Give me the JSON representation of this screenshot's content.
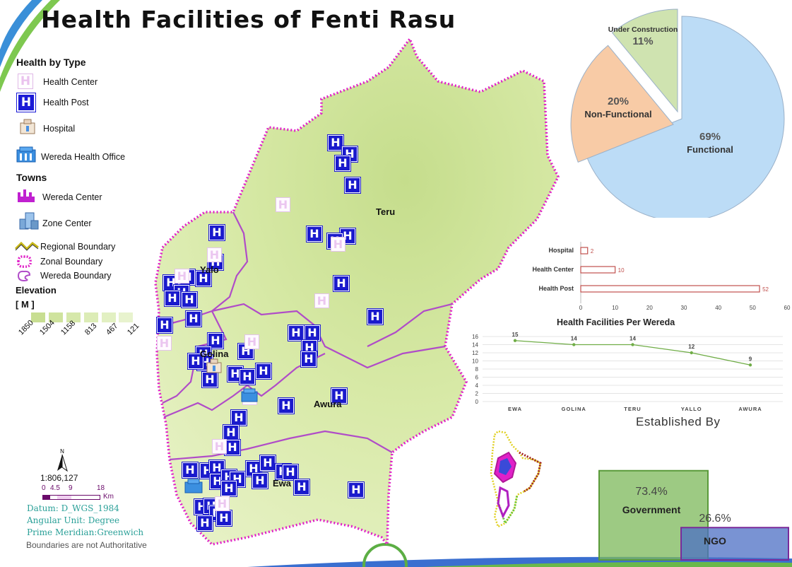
{
  "title": "Health Facilities of Fenti Rasu",
  "legend": {
    "health_by_type_heading": "Health by Type",
    "health_center": "Health Center",
    "health_post": "Health Post",
    "hospital": "Hospital",
    "wereda_health_office": "Wereda Health Office",
    "towns_heading": "Towns",
    "wereda_center": "Wereda Center",
    "zone_center": "Zone Center",
    "regional_boundary": "Regional Boundary",
    "zonal_boundary": "Zonal Boundary",
    "wereda_boundary": "Wereda Boundary",
    "elevation_heading": "Elevation",
    "elevation_unit": "[ M ]",
    "elevation_values": [
      "1850",
      "1504",
      "1158",
      "813",
      "467",
      "121"
    ],
    "colors": {
      "health_post": "#1a1acc",
      "health_center": "#e3c4ea",
      "zonal_boundary": "#e020c8",
      "wereda_boundary": "#b04cc8",
      "map_fill": "#d6e8a4"
    }
  },
  "map": {
    "places": [
      "Teru",
      "Yalo",
      "Golina",
      "Awura",
      "Ewa"
    ],
    "hp_glyph": "H",
    "hc_glyph": "H"
  },
  "scale": {
    "ratio": "1:806,127",
    "ticks": [
      "0",
      "4.5",
      "9",
      "18"
    ],
    "unit": "Km",
    "north": "N"
  },
  "info": {
    "datum": "Datum: D_WGS_1984",
    "angular": "Angular Unit: Degree",
    "meridian": "Prime Meridian:Greenwich",
    "disclaimer": "Boundaries are not Authoritative"
  },
  "chart_data": [
    {
      "type": "pie",
      "labels": [
        "Functional",
        "Non-Functional",
        "Under Construction"
      ],
      "values": [
        69,
        20,
        11
      ],
      "value_labels": [
        "69%",
        "20%",
        "11%"
      ],
      "colors": [
        "#bcdcf6",
        "#f8cba6",
        "#cfe3b0"
      ]
    },
    {
      "type": "bar",
      "orientation": "horizontal",
      "categories": [
        "Hospital",
        "Health Center",
        "Health Post"
      ],
      "values": [
        2,
        10,
        52
      ],
      "xlim": [
        0,
        60
      ],
      "xticks": [
        "0",
        "10",
        "20",
        "30",
        "40",
        "50",
        "60"
      ],
      "color": "#c0504d"
    },
    {
      "type": "line",
      "title": "Health Facilities Per Wereda",
      "categories": [
        "EWA",
        "GOLINA",
        "TERU",
        "YALLO",
        "AWURA"
      ],
      "values": [
        15,
        14,
        14,
        12,
        9
      ],
      "ylim": [
        0,
        16
      ],
      "yticks": [
        "0",
        "2",
        "4",
        "6",
        "8",
        "10",
        "12",
        "14",
        "16"
      ],
      "color": "#70ad47",
      "grid": true
    },
    {
      "type": "bar",
      "title": "Established By",
      "categories": [
        "Government",
        "NGO"
      ],
      "values": [
        73.4,
        26.6
      ],
      "value_labels": [
        "73.4%",
        "26.6%"
      ],
      "colors": [
        "#7cb85a",
        "#4c6fc4"
      ]
    }
  ]
}
